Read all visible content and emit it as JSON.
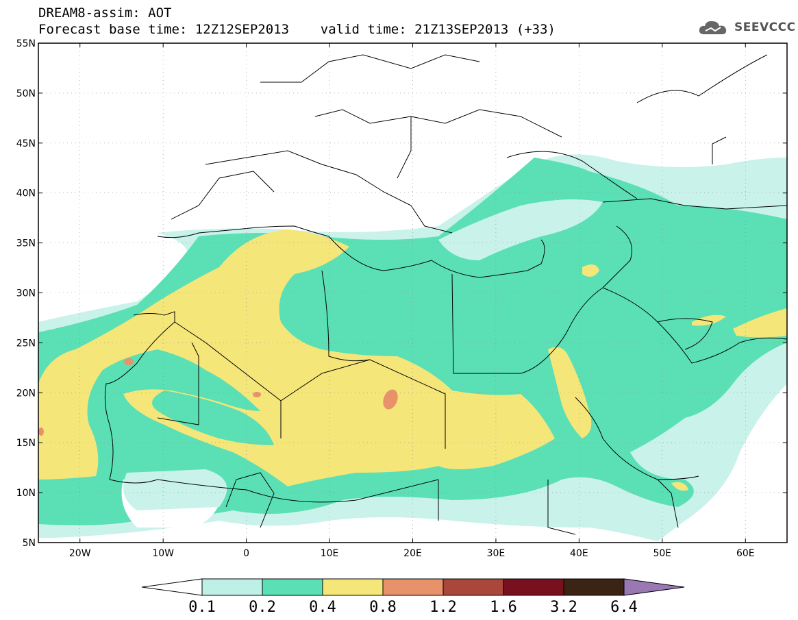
{
  "header": {
    "line1": "DREAM8-assim: AOT",
    "line2": "Forecast base time: 12Z12SEP2013    valid time: 21Z13SEP2013 (+33)",
    "logo_text": "SEEVCCC"
  },
  "axes": {
    "lat_labels": [
      "55N",
      "50N",
      "45N",
      "40N",
      "35N",
      "30N",
      "25N",
      "20N",
      "15N",
      "10N",
      "5N"
    ],
    "lon_labels": [
      "20W",
      "10W",
      "0",
      "10E",
      "20E",
      "30E",
      "40E",
      "50E",
      "60E"
    ],
    "lat_range": [
      5,
      55
    ],
    "lon_range": [
      -25,
      65
    ]
  },
  "legend": {
    "levels": [
      "0.1",
      "0.2",
      "0.4",
      "0.8",
      "1.2",
      "1.6",
      "3.2",
      "6.4"
    ],
    "colors": [
      "#ffffff",
      "#bff0e6",
      "#5ae0b4",
      "#f5e67a",
      "#e8926a",
      "#a8473a",
      "#78101e",
      "#3c2414",
      "#9a78b4"
    ]
  },
  "colors": {
    "c01": "#c8f2ea",
    "c02": "#5ae0b4",
    "c04": "#f5e67a",
    "c08": "#e8926a",
    "border": "#000000"
  }
}
